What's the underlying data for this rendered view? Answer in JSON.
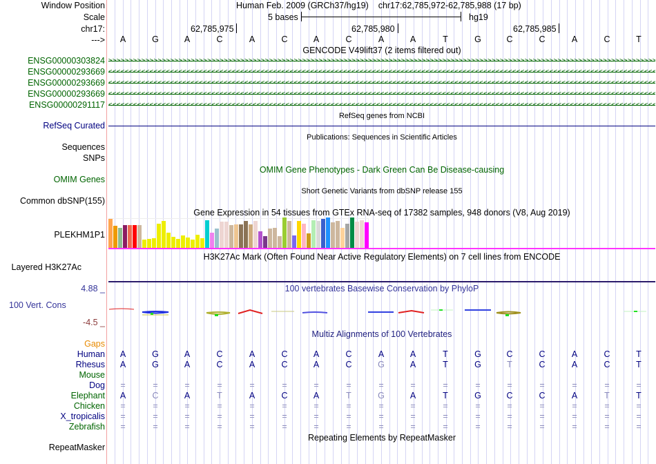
{
  "header": {
    "window_position_label": "Window Position",
    "scale_label": "Scale",
    "chrom_label": "chr17:",
    "strand_label": "--->",
    "assembly": "Human Feb. 2009 (GRCh37/hg19)",
    "position": "chr17:62,785,972-62,785,988 (17 bp)",
    "scale_text": "5 bases",
    "scale_db": "hg19",
    "ruler_ticks": [
      "62,785,975",
      "62,785,980",
      "62,785,985"
    ]
  },
  "sequence": [
    "A",
    "G",
    "A",
    "C",
    "A",
    "C",
    "A",
    "C",
    "A",
    "A",
    "T",
    "G",
    "C",
    "C",
    "A",
    "C",
    "T"
  ],
  "tracks": {
    "gencode": {
      "title": "GENCODE V49lift37 (2 items filtered out)",
      "genes": [
        {
          "name": "ENSG00000303824",
          "strand": "+"
        },
        {
          "name": "ENSG00000293669",
          "strand": "-"
        },
        {
          "name": "ENSG00000293669",
          "strand": "-"
        },
        {
          "name": "ENSG00000293669",
          "strand": "-"
        },
        {
          "name": "ENSG00000291117",
          "strand": "-"
        }
      ]
    },
    "refseq": {
      "title": "RefSeq genes from NCBI",
      "label": "RefSeq Curated"
    },
    "publications": {
      "title": "Publications: Sequences in Scientific Articles",
      "labels": [
        "Sequences",
        "SNPs"
      ]
    },
    "omim": {
      "title": "OMIM Gene Phenotypes - Dark Green Can Be Disease-causing",
      "label": "OMIM Genes"
    },
    "dbsnp": {
      "title": "Short Genetic Variants from dbSNP release 155",
      "label": "Common dbSNP(155)"
    },
    "gtex": {
      "title": "Gene Expression in 54 tissues from GTEx RNA-seq of 17382 samples, 948 donors (V8, Aug 2019)",
      "label": "PLEKHM1P1"
    },
    "h3k27ac": {
      "title": "H3K27Ac Mark (Often Found Near Active Regulatory Elements) on 7 cell lines from ENCODE",
      "label": "Layered H3K27Ac"
    },
    "phylop": {
      "title": "100 vertebrates Basewise Conservation by PhyloP",
      "label": "100 Vert. Cons",
      "max": "4.88 _",
      "min": "-4.5 _"
    },
    "multiz": {
      "title": "Multiz Alignments of 100 Vertebrates",
      "gaps_label": "Gaps",
      "species": [
        {
          "name": "Human",
          "color": "#000080",
          "bases": [
            "A",
            "G",
            "A",
            "C",
            "A",
            "C",
            "A",
            "C",
            "A",
            "A",
            "T",
            "G",
            "C",
            "C",
            "A",
            "C",
            "T"
          ]
        },
        {
          "name": "Rhesus",
          "color": "#000080",
          "bases": [
            "A",
            "G",
            "A",
            "C",
            "A",
            "C",
            "A",
            "C",
            "g",
            "A",
            "T",
            "G",
            "t",
            "C",
            "A",
            "C",
            "T"
          ]
        },
        {
          "name": "Mouse",
          "color": "#006400",
          "bases": []
        },
        {
          "name": "Dog",
          "color": "#000080",
          "bases": [
            "=",
            "=",
            "=",
            "=",
            "=",
            "=",
            "=",
            "=",
            "=",
            "=",
            "=",
            "=",
            "=",
            "=",
            "=",
            "=",
            "="
          ]
        },
        {
          "name": "Elephant",
          "color": "#006400",
          "bases": [
            "A",
            "c",
            "A",
            "t",
            "A",
            "C",
            "A",
            "t",
            "g",
            "A",
            "T",
            "G",
            "C",
            "C",
            "A",
            "t",
            "T"
          ]
        },
        {
          "name": "Chicken",
          "color": "#006400",
          "bases": [
            "=",
            "=",
            "=",
            "=",
            "=",
            "=",
            "=",
            "=",
            "=",
            "=",
            "=",
            "=",
            "=",
            "=",
            "=",
            "=",
            "="
          ]
        },
        {
          "name": "X_tropicalis",
          "color": "#000080",
          "bases": [
            "=",
            "=",
            "=",
            "=",
            "=",
            "=",
            "=",
            "=",
            "=",
            "=",
            "=",
            "=",
            "=",
            "=",
            "=",
            "=",
            "="
          ]
        },
        {
          "name": "Zebrafish",
          "color": "#006400",
          "bases": [
            "=",
            "=",
            "=",
            "=",
            "=",
            "=",
            "=",
            "=",
            "=",
            "=",
            "=",
            "=",
            "=",
            "=",
            "=",
            "=",
            "="
          ]
        }
      ]
    },
    "repeatmasker": {
      "title": "Repeating Elements by RepeatMasker",
      "label": "RepeatMasker"
    }
  },
  "gtex_bars": [
    {
      "v": 0.95,
      "c": "#FFA54F"
    },
    {
      "v": 0.72,
      "c": "#EE9A00"
    },
    {
      "v": 0.67,
      "c": "#8FBC8F"
    },
    {
      "v": 0.76,
      "c": "#8B1C62"
    },
    {
      "v": 0.76,
      "c": "#EE6A50"
    },
    {
      "v": 0.76,
      "c": "#FF0000"
    },
    {
      "v": 0.76,
      "c": "#CDB79E"
    },
    {
      "v": 0.27,
      "c": "#EEEE00"
    },
    {
      "v": 0.3,
      "c": "#EEEE00"
    },
    {
      "v": 0.32,
      "c": "#EEEE00"
    },
    {
      "v": 0.8,
      "c": "#EEEE00"
    },
    {
      "v": 0.88,
      "c": "#EEEE00"
    },
    {
      "v": 0.49,
      "c": "#EEEE00"
    },
    {
      "v": 0.37,
      "c": "#EEEE00"
    },
    {
      "v": 0.3,
      "c": "#EEEE00"
    },
    {
      "v": 0.4,
      "c": "#EEEE00"
    },
    {
      "v": 0.33,
      "c": "#EEEE00"
    },
    {
      "v": 0.27,
      "c": "#EEEE00"
    },
    {
      "v": 0.43,
      "c": "#EEEE00"
    },
    {
      "v": 0.31,
      "c": "#EEEE00"
    },
    {
      "v": 0.9,
      "c": "#00CED1"
    },
    {
      "v": 0.5,
      "c": "#EE82EE"
    },
    {
      "v": 0.63,
      "c": "#9AC0CD"
    },
    {
      "v": 0.87,
      "c": "#EED5D2"
    },
    {
      "v": 0.87,
      "c": "#EED5D2"
    },
    {
      "v": 0.75,
      "c": "#CDB79E"
    },
    {
      "v": 0.77,
      "c": "#EEC591"
    },
    {
      "v": 0.77,
      "c": "#8B7355"
    },
    {
      "v": 0.89,
      "c": "#8B7355"
    },
    {
      "v": 0.77,
      "c": "#CDAA7D"
    },
    {
      "v": 0.89,
      "c": "#EED5D2"
    },
    {
      "v": 0.55,
      "c": "#B452CD"
    },
    {
      "v": 0.39,
      "c": "#7A378B"
    },
    {
      "v": 0.63,
      "c": "#CDB79E"
    },
    {
      "v": 0.66,
      "c": "#CDB79E"
    },
    {
      "v": 0.38,
      "c": "#CDB79E"
    },
    {
      "v": 1.0,
      "c": "#9ACD32"
    },
    {
      "v": 0.89,
      "c": "#CDB79E"
    },
    {
      "v": 0.4,
      "c": "#7B68EE"
    },
    {
      "v": 0.89,
      "c": "#FFD700"
    },
    {
      "v": 0.8,
      "c": "#FFB6C1"
    },
    {
      "v": 0.47,
      "c": "#CD9B1D"
    },
    {
      "v": 0.92,
      "c": "#B4EEB4"
    },
    {
      "v": 0.89,
      "c": "#D9D9D9"
    },
    {
      "v": 0.96,
      "c": "#3A5FCD"
    },
    {
      "v": 1.0,
      "c": "#1E90FF"
    },
    {
      "v": 0.83,
      "c": "#CDB79E"
    },
    {
      "v": 0.88,
      "c": "#CDB79E"
    },
    {
      "v": 0.66,
      "c": "#FFD39B"
    },
    {
      "v": 0.8,
      "c": "#A6A6A6"
    },
    {
      "v": 1.0,
      "c": "#008B45"
    },
    {
      "v": 0.86,
      "c": "#EED5D2"
    },
    {
      "v": 0.9,
      "c": "#EED5D2"
    },
    {
      "v": 0.85,
      "c": "#FF00FF"
    }
  ],
  "colors": {
    "gene": "#006400",
    "refseq": "#000080",
    "gtex_baseline": "#FF33FF",
    "phylop_pos": "#000080",
    "phylop_neg": "#8B3A3A",
    "gaps": "#E88A00"
  }
}
